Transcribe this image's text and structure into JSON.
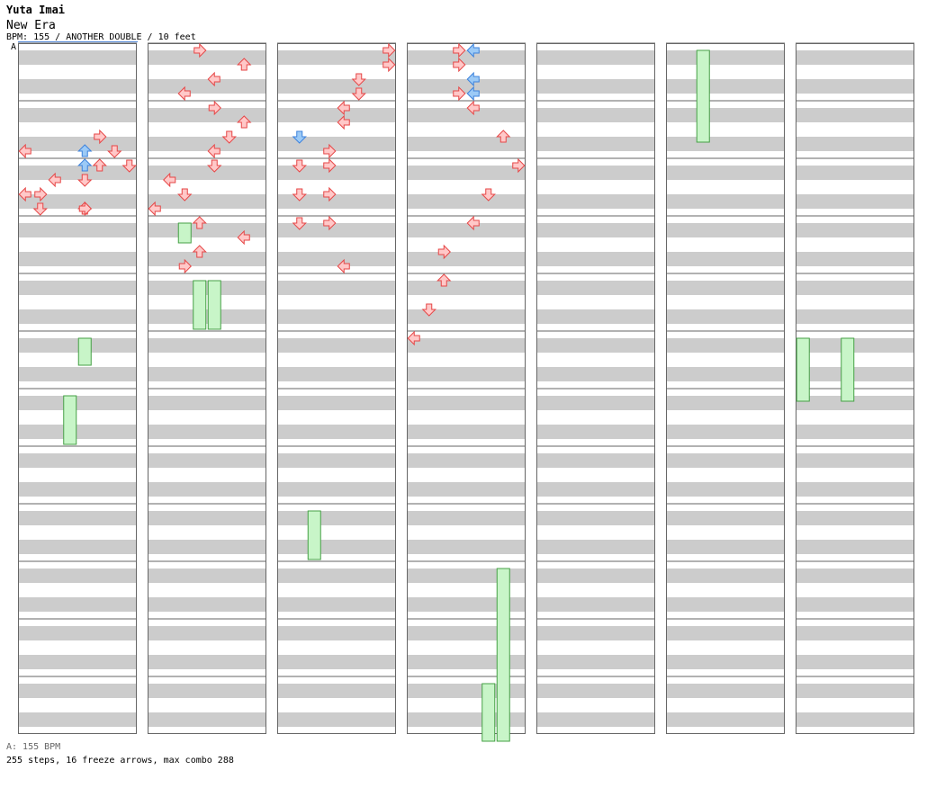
{
  "header": {
    "artist": "Yuta Imai",
    "title": "New Era",
    "info": "BPM: 155 / ANOTHER DOUBLE / 10 feet",
    "bpm_marker": "A"
  },
  "footer": {
    "bpm_line": "A: 155 BPM",
    "stats": "255 steps, 16 freeze arrows, max combo 288"
  },
  "colors": {
    "note_fill": "#ffc8c8",
    "note_stroke": "#e64646",
    "blue_fill": "#9ccaf6",
    "blue_stroke": "#3c82dc",
    "freeze_fill": "#c8f5c8",
    "freeze_stroke": "#46a046",
    "stripe": "#cccccc",
    "measure_line": "#666666"
  },
  "chart": {
    "columns": 7,
    "measures_per_column": 12,
    "lanes": 8,
    "sublines_per_measure": 16,
    "notes": [
      [
        0,
        6,
        5,
        "R",
        "r"
      ],
      [
        0,
        7,
        0,
        "L",
        "r"
      ],
      [
        0,
        7,
        4,
        "U",
        "b"
      ],
      [
        0,
        7,
        6,
        "D",
        "r"
      ],
      [
        0,
        8,
        5,
        "U",
        "r"
      ],
      [
        0,
        8,
        4,
        "U",
        "b"
      ],
      [
        0,
        8,
        7,
        "D",
        "r"
      ],
      [
        0,
        9,
        2,
        "L",
        "r"
      ],
      [
        0,
        9,
        4,
        "D",
        "r"
      ],
      [
        0,
        10,
        0,
        "L",
        "r"
      ],
      [
        0,
        10,
        1,
        "R",
        "r"
      ],
      [
        0,
        11,
        4,
        "U",
        "r"
      ],
      [
        0,
        11,
        1,
        "D",
        "r"
      ],
      [
        0,
        11,
        4,
        "R",
        "r"
      ],
      [
        1,
        0,
        3,
        "R",
        "r"
      ],
      [
        1,
        1,
        6,
        "U",
        "r"
      ],
      [
        1,
        2,
        4,
        "L",
        "r"
      ],
      [
        1,
        3,
        2,
        "L",
        "r"
      ],
      [
        1,
        4,
        4,
        "R",
        "r"
      ],
      [
        1,
        5,
        6,
        "U",
        "r"
      ],
      [
        1,
        6,
        5,
        "D",
        "r"
      ],
      [
        1,
        7,
        4,
        "L",
        "r"
      ],
      [
        1,
        8,
        4,
        "D",
        "r"
      ],
      [
        1,
        9,
        1,
        "L",
        "r"
      ],
      [
        1,
        10,
        2,
        "D",
        "r"
      ],
      [
        1,
        11,
        0,
        "L",
        "r"
      ],
      [
        1,
        12,
        3,
        "U",
        "r"
      ],
      [
        1,
        13,
        6,
        "L",
        "r"
      ],
      [
        1,
        14,
        3,
        "U",
        "r"
      ],
      [
        1,
        15,
        2,
        "R",
        "r"
      ],
      [
        2,
        0,
        7,
        "R",
        "r"
      ],
      [
        2,
        1,
        7,
        "R",
        "r"
      ],
      [
        2,
        2,
        5,
        "D",
        "r"
      ],
      [
        2,
        3,
        5,
        "D",
        "r"
      ],
      [
        2,
        4,
        4,
        "L",
        "r"
      ],
      [
        2,
        5,
        4,
        "L",
        "r"
      ],
      [
        2,
        6,
        1,
        "D",
        "b"
      ],
      [
        2,
        7,
        3,
        "R",
        "r"
      ],
      [
        2,
        8,
        1,
        "D",
        "r"
      ],
      [
        2,
        8,
        3,
        "R",
        "r"
      ],
      [
        2,
        10,
        1,
        "D",
        "r"
      ],
      [
        2,
        10,
        3,
        "R",
        "r"
      ],
      [
        2,
        12,
        1,
        "D",
        "r"
      ],
      [
        2,
        12,
        3,
        "R",
        "r"
      ],
      [
        2,
        15,
        4,
        "L",
        "r"
      ],
      [
        3,
        0,
        3,
        "R",
        "r"
      ],
      [
        3,
        0,
        4,
        "L",
        "b"
      ],
      [
        3,
        1,
        3,
        "R",
        "r"
      ],
      [
        3,
        2,
        4,
        "L",
        "b"
      ],
      [
        3,
        3,
        3,
        "R",
        "r"
      ],
      [
        3,
        3,
        4,
        "L",
        "b"
      ],
      [
        3,
        4,
        4,
        "L",
        "r"
      ],
      [
        3,
        6,
        6,
        "U",
        "r"
      ],
      [
        3,
        8,
        7,
        "R",
        "r"
      ],
      [
        3,
        10,
        5,
        "D",
        "r"
      ],
      [
        3,
        12,
        4,
        "L",
        "r"
      ],
      [
        3,
        14,
        2,
        "R",
        "r"
      ],
      [
        3,
        16,
        2,
        "U",
        "r"
      ],
      [
        3,
        18,
        1,
        "D",
        "r"
      ],
      [
        3,
        20,
        0,
        "L",
        "r"
      ]
    ]
  }
}
